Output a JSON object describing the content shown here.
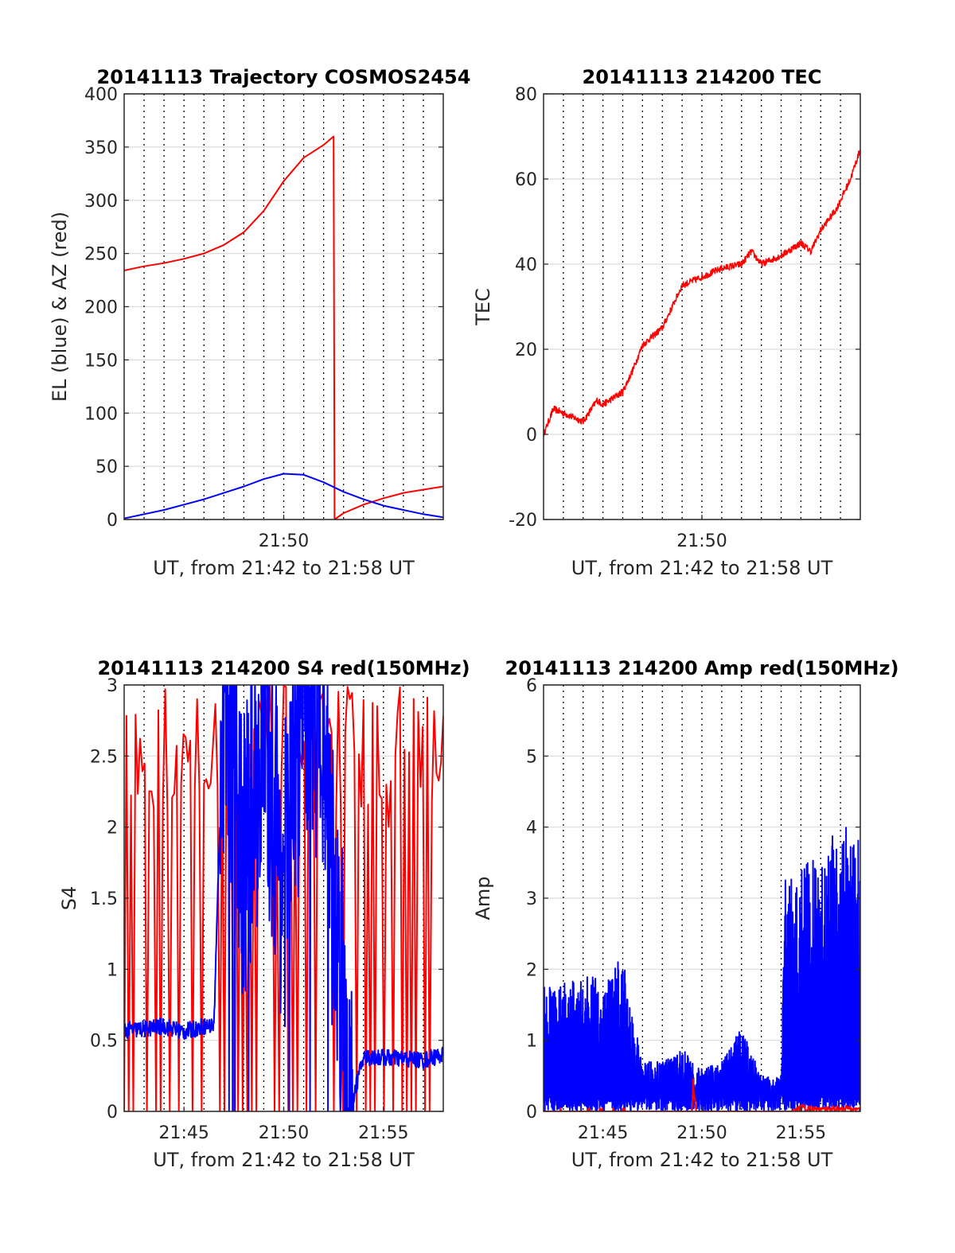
{
  "figure": {
    "panels": [
      {
        "title": "20141113 Trajectory COSMOS2454"
      },
      {
        "title": "20141113 214200 TEC"
      },
      {
        "title": "20141113 214200 S4 red(150MHz)"
      },
      {
        "title": "20141113 214200 Amp red(150MHz)"
      }
    ]
  },
  "chart_data": [
    {
      "type": "line",
      "title": "20141113 Trajectory COSMOS2454",
      "xlabel": "UT, from 21:42 to 21:58 UT",
      "ylabel": "EL (blue) & AZ (red)",
      "xlim": [
        "21:42",
        "21:58"
      ],
      "ylim": [
        0,
        400
      ],
      "xticks": [
        "21:50"
      ],
      "yticks": [
        0,
        50,
        100,
        150,
        200,
        250,
        300,
        350,
        400
      ],
      "grid": "dotted vertical minute lines, light horizontal lines",
      "series": [
        {
          "color": "#ff0000",
          "x": [
            "21:42",
            "21:43",
            "21:44",
            "21:45",
            "21:46",
            "21:47",
            "21:48",
            "21:49",
            "21:50",
            "21:51",
            "21:52",
            "21:52.5",
            "21:52.55",
            "21:53",
            "21:54",
            "21:55",
            "21:56",
            "21:57",
            "21:58"
          ],
          "values": [
            234,
            238,
            241,
            245,
            250,
            258,
            270,
            290,
            318,
            340,
            352,
            360,
            0,
            6,
            14,
            20,
            25,
            28,
            31
          ]
        },
        {
          "color": "#0000ff",
          "x": [
            "21:42",
            "21:43",
            "21:44",
            "21:45",
            "21:46",
            "21:47",
            "21:48",
            "21:49",
            "21:50",
            "21:51",
            "21:52",
            "21:53",
            "21:54",
            "21:55",
            "21:56",
            "21:57",
            "21:58"
          ],
          "values": [
            1,
            5,
            9,
            14,
            19,
            25,
            31,
            38,
            43,
            42,
            35,
            26,
            19,
            13,
            9,
            5,
            2
          ]
        }
      ]
    },
    {
      "type": "line",
      "title": "20141113 214200 TEC",
      "xlabel": "UT, from 21:42 to 21:58 UT",
      "ylabel": "TEC",
      "xlim": [
        "21:42",
        "21:58"
      ],
      "ylim": [
        -20,
        80
      ],
      "xticks": [
        "21:50"
      ],
      "yticks": [
        -20,
        0,
        20,
        40,
        60,
        80
      ],
      "series": [
        {
          "color": "#ff0000",
          "x": [
            "21:42",
            "21:42.5",
            "21:43",
            "21:44",
            "21:44.7",
            "21:45",
            "21:46",
            "21:46.5",
            "21:47",
            "21:48",
            "21:48.5",
            "21:49",
            "21:50",
            "21:51",
            "21:52",
            "21:52.5",
            "21:53",
            "21:54",
            "21:55",
            "21:55.5",
            "21:56",
            "21:56.8",
            "21:57.5",
            "21:58"
          ],
          "values": [
            0,
            6,
            5,
            3,
            8,
            7,
            10,
            15,
            21,
            25,
            30,
            35,
            37,
            39,
            40,
            43,
            40,
            42,
            45,
            43,
            48,
            53,
            60,
            67
          ]
        }
      ]
    },
    {
      "type": "line",
      "title": "20141113 214200 S4 red(150MHz)",
      "xlabel": "UT, from 21:42 to 21:58 UT",
      "ylabel": "S4",
      "xlim": [
        "21:42",
        "21:58"
      ],
      "ylim": [
        0,
        3
      ],
      "xticks": [
        "21:45",
        "21:50",
        "21:55"
      ],
      "yticks": [
        0,
        0.5,
        1,
        1.5,
        2,
        2.5,
        3
      ],
      "series": [
        {
          "color": "#ff0000",
          "x": [
            "21:42",
            "21:43",
            "21:44",
            "21:45",
            "21:46",
            "21:46.5",
            "21:47",
            "21:48",
            "21:49",
            "21:50",
            "21:51",
            "21:52",
            "21:53",
            "21:54",
            "21:55",
            "21:56",
            "21:57",
            "21:58"
          ],
          "values": [
            3,
            0,
            3,
            0,
            3,
            0,
            3,
            0,
            3,
            0,
            3,
            0,
            3,
            0,
            3,
            0,
            3,
            0
          ]
        },
        {
          "color": "#0000ff",
          "x": [
            "21:42",
            "21:43",
            "21:44",
            "21:45",
            "21:46",
            "21:46.5",
            "21:47",
            "21:47.5",
            "21:48",
            "21:49",
            "21:50",
            "21:51",
            "21:52",
            "21:52.5",
            "21:53",
            "21:53.3",
            "21:54",
            "21:55",
            "21:56",
            "21:57",
            "21:58"
          ],
          "values": [
            0.57,
            0.58,
            0.6,
            0.56,
            0.6,
            0.6,
            3,
            2.5,
            1.8,
            2.7,
            1.6,
            3,
            2.8,
            1.4,
            1.0,
            0.0,
            0.38,
            0.38,
            0.37,
            0.36,
            0.4
          ]
        }
      ]
    },
    {
      "type": "line",
      "title": "20141113 214200 Amp red(150MHz)",
      "xlabel": "UT, from 21:42 to 21:58 UT",
      "ylabel": "Amp",
      "xlim": [
        "21:42",
        "21:58"
      ],
      "ylim": [
        0,
        6
      ],
      "xticks": [
        "21:45",
        "21:50",
        "21:55"
      ],
      "yticks": [
        0,
        1,
        2,
        3,
        4,
        5,
        6
      ],
      "series": [
        {
          "color": "#0000ff",
          "x": [
            "21:42",
            "21:43",
            "21:44",
            "21:45",
            "21:46",
            "21:46.4",
            "21:47",
            "21:48",
            "21:49",
            "21:50",
            "21:51",
            "21:52",
            "21:53",
            "21:54",
            "21:54.2",
            "21:55",
            "21:56",
            "21:57",
            "21:58"
          ],
          "values": [
            1.8,
            1.8,
            1.9,
            1.9,
            2.2,
            1.5,
            0.7,
            0.7,
            0.9,
            0.6,
            0.7,
            1.2,
            0.5,
            0.5,
            3.3,
            3.5,
            3.6,
            4.1,
            3.8
          ]
        },
        {
          "color": "#ff0000",
          "x": [
            "21:42",
            "21:49.5",
            "21:49.6",
            "21:49.7",
            "21:54.5",
            "21:55",
            "21:56",
            "21:57",
            "21:58"
          ],
          "values": [
            0,
            0,
            0.9,
            0,
            0,
            0.1,
            0.05,
            0.1,
            0.05
          ]
        }
      ]
    }
  ]
}
